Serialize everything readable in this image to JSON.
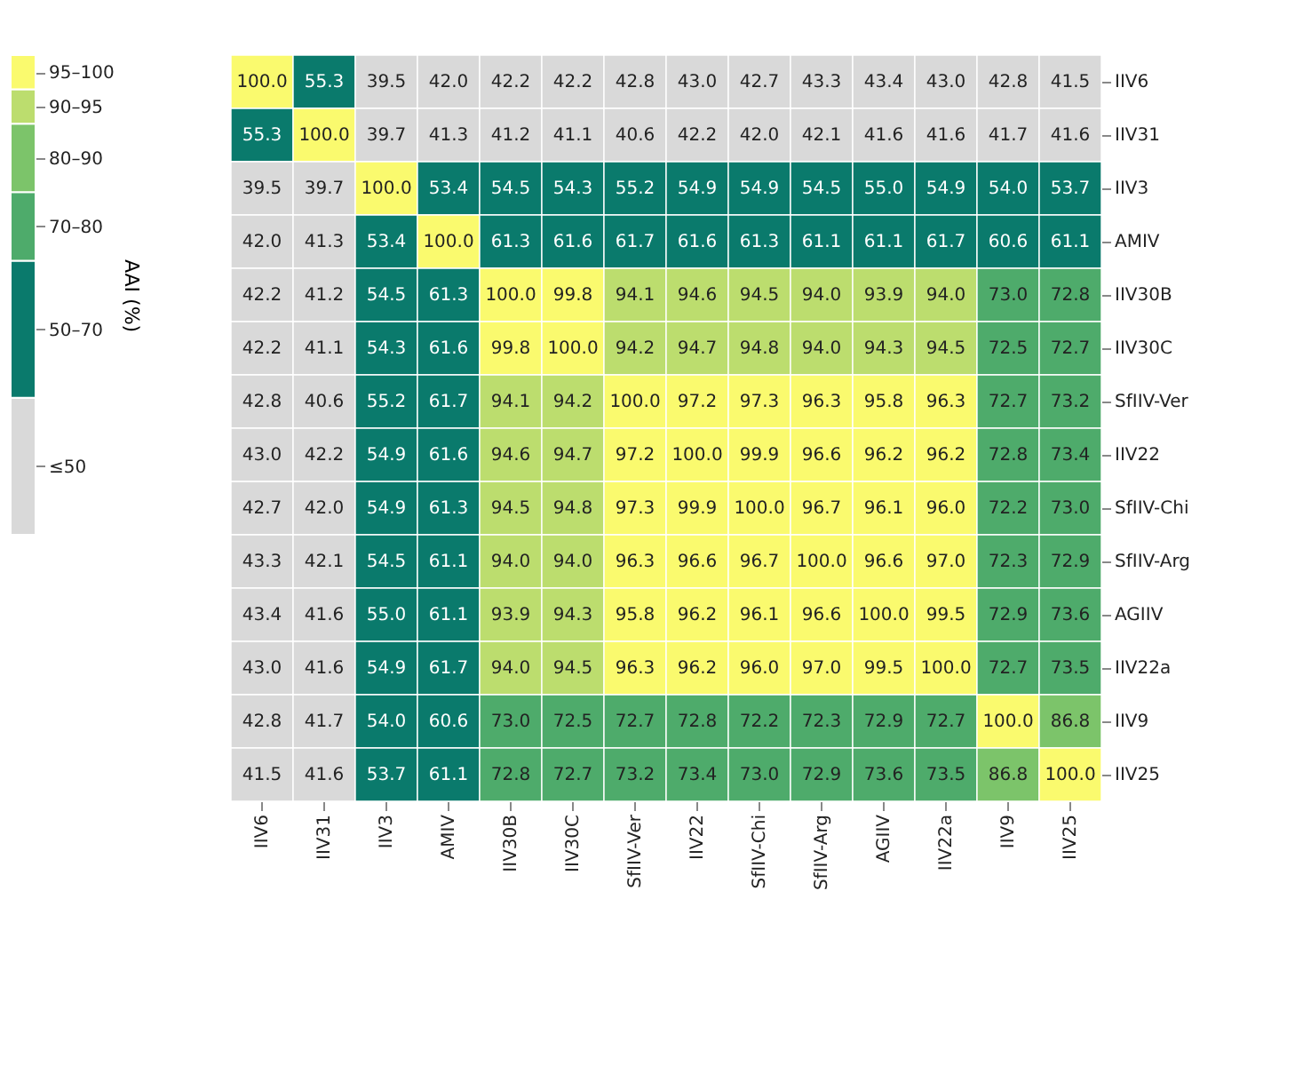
{
  "chart_data": {
    "type": "heatmap",
    "clabel": "AAI (%)",
    "data_labels": true,
    "categories": [
      "IIV6",
      "IIV31",
      "IIV3",
      "AMIV",
      "IIV30B",
      "IIV30C",
      "SfIIV-Ver",
      "IIV22",
      "SfIIV-Chi",
      "SfIIV-Arg",
      "AGIIV",
      "IIV22a",
      "IIV9",
      "IIV25"
    ],
    "y_categories": [
      "IIV6",
      "IIV31",
      "IIV3",
      "AMIV",
      "IIV30B",
      "IIV30C",
      "SfIIV-Ver",
      "IIV22",
      "SfIIV-Chi",
      "SfIIV-Arg",
      "AGIIV",
      "IIV22a",
      "IIV9",
      "IIV25"
    ],
    "cells": [
      [
        100.0,
        55.3,
        39.5,
        42.0,
        42.2,
        42.2,
        42.8,
        43.0,
        42.7,
        43.3,
        43.4,
        43.0,
        42.8,
        41.5
      ],
      [
        55.3,
        100.0,
        39.7,
        41.3,
        41.2,
        41.1,
        40.6,
        42.2,
        42.0,
        42.1,
        41.6,
        41.6,
        41.7,
        41.6
      ],
      [
        39.5,
        39.7,
        100.0,
        53.4,
        54.5,
        54.3,
        55.2,
        54.9,
        54.9,
        54.5,
        55.0,
        54.9,
        54.0,
        53.7
      ],
      [
        42.0,
        41.3,
        53.4,
        100.0,
        61.3,
        61.6,
        61.7,
        61.6,
        61.3,
        61.1,
        61.1,
        61.7,
        60.6,
        61.1
      ],
      [
        42.2,
        41.2,
        54.5,
        61.3,
        100.0,
        99.8,
        94.1,
        94.6,
        94.5,
        94.0,
        93.9,
        94.0,
        73.0,
        72.8
      ],
      [
        42.2,
        41.1,
        54.3,
        61.6,
        99.8,
        100.0,
        94.2,
        94.7,
        94.8,
        94.0,
        94.3,
        94.5,
        72.5,
        72.7
      ],
      [
        42.8,
        40.6,
        55.2,
        61.7,
        94.1,
        94.2,
        100.0,
        97.2,
        97.3,
        96.3,
        95.8,
        96.3,
        72.7,
        73.2
      ],
      [
        43.0,
        42.2,
        54.9,
        61.6,
        94.6,
        94.7,
        97.2,
        100.0,
        99.9,
        96.6,
        96.2,
        96.2,
        72.8,
        73.4
      ],
      [
        42.7,
        42.0,
        54.9,
        61.3,
        94.5,
        94.8,
        97.3,
        99.9,
        100.0,
        96.7,
        96.1,
        96.0,
        72.2,
        73.0
      ],
      [
        43.3,
        42.1,
        54.5,
        61.1,
        94.0,
        94.0,
        96.3,
        96.6,
        96.7,
        100.0,
        96.6,
        97.0,
        72.3,
        72.9
      ],
      [
        43.4,
        41.6,
        55.0,
        61.1,
        93.9,
        94.3,
        95.8,
        96.2,
        96.1,
        96.6,
        100.0,
        99.5,
        72.9,
        73.6
      ],
      [
        43.0,
        41.6,
        54.9,
        61.7,
        94.0,
        94.5,
        96.3,
        96.2,
        96.0,
        97.0,
        99.5,
        100.0,
        72.7,
        73.5
      ],
      [
        42.8,
        41.7,
        54.0,
        60.6,
        73.0,
        72.5,
        72.7,
        72.8,
        72.2,
        72.3,
        72.9,
        72.7,
        100.0,
        86.8
      ],
      [
        41.5,
        41.6,
        53.7,
        61.1,
        72.8,
        72.7,
        73.2,
        73.4,
        73.0,
        72.9,
        73.6,
        73.5,
        86.8,
        100.0
      ]
    ],
    "cell_labels": [
      [
        "100.0",
        "55.3",
        "39.5",
        "42.0",
        "42.2",
        "42.2",
        "42.8",
        "43.0",
        "42.7",
        "43.3",
        "43.4",
        "43.0",
        "42.8",
        "41.5"
      ],
      [
        "55.3",
        "100.0",
        "39.7",
        "41.3",
        "41.2",
        "41.1",
        "40.6",
        "42.2",
        "42.0",
        "42.1",
        "41.6",
        "41.6",
        "41.7",
        "41.6"
      ],
      [
        "39.5",
        "39.7",
        "100.0",
        "53.4",
        "54.5",
        "54.3",
        "55.2",
        "54.9",
        "54.9",
        "54.5",
        "55.0",
        "54.9",
        "54.0",
        "53.7"
      ],
      [
        "42.0",
        "41.3",
        "53.4",
        "100.0",
        "61.3",
        "61.6",
        "61.7",
        "61.6",
        "61.3",
        "61.1",
        "61.1",
        "61.7",
        "60.6",
        "61.1"
      ],
      [
        "42.2",
        "41.2",
        "54.5",
        "61.3",
        "100.0",
        "99.8",
        "94.1",
        "94.6",
        "94.5",
        "94.0",
        "93.9",
        "94.0",
        "73.0",
        "72.8"
      ],
      [
        "42.2",
        "41.1",
        "54.3",
        "61.6",
        "99.8",
        "100.0",
        "94.2",
        "94.7",
        "94.8",
        "94.0",
        "94.3",
        "94.5",
        "72.5",
        "72.7"
      ],
      [
        "42.8",
        "40.6",
        "55.2",
        "61.7",
        "94.1",
        "94.2",
        "100.0",
        "97.2",
        "97.3",
        "96.3",
        "95.8",
        "96.3",
        "72.7",
        "73.2"
      ],
      [
        "43.0",
        "42.2",
        "54.9",
        "61.6",
        "94.6",
        "94.7",
        "97.2",
        "100.0",
        "99.9",
        "96.6",
        "96.2",
        "96.2",
        "72.8",
        "73.4"
      ],
      [
        "42.7",
        "42.0",
        "54.9",
        "61.3",
        "94.5",
        "94.8",
        "97.3",
        "99.9",
        "100.0",
        "96.7",
        "96.1",
        "96.0",
        "72.2",
        "73.0"
      ],
      [
        "43.3",
        "42.1",
        "54.5",
        "61.1",
        "94.0",
        "94.0",
        "96.3",
        "96.6",
        "96.7",
        "100.0",
        "96.6",
        "97.0",
        "72.3",
        "72.9"
      ],
      [
        "43.4",
        "41.6",
        "55.0",
        "61.1",
        "93.9",
        "94.3",
        "95.8",
        "96.2",
        "96.1",
        "96.6",
        "100.0",
        "99.5",
        "72.9",
        "73.6"
      ],
      [
        "43.0",
        "41.6",
        "54.9",
        "61.7",
        "94.0",
        "94.5",
        "96.3",
        "96.2",
        "96.0",
        "97.0",
        "99.5",
        "100.0",
        "72.7",
        "73.5"
      ],
      [
        "42.8",
        "41.7",
        "54.0",
        "60.6",
        "73.0",
        "72.5",
        "72.7",
        "72.8",
        "72.2",
        "72.3",
        "72.9",
        "72.7",
        "100.0",
        "86.8"
      ],
      [
        "41.5",
        "41.6",
        "53.7",
        "61.1",
        "72.8",
        "72.7",
        "73.2",
        "73.4",
        "73.0",
        "72.9",
        "73.6",
        "73.5",
        "86.8",
        "100.0"
      ]
    ],
    "colors": [
      "#d9d9d9",
      "#0a7a6c",
      "#4eab6b",
      "#7cc46a",
      "#bcdd6e",
      "#fafa6e"
    ],
    "clim": [
      30,
      100
    ],
    "cticks": [
      {
        "value": 40,
        "label": "≤50"
      },
      {
        "value": 60,
        "label": "50–70"
      },
      {
        "value": 75,
        "label": "70–80"
      },
      {
        "value": 85,
        "label": "80–90"
      },
      {
        "value": 92.5,
        "label": "90–95"
      },
      {
        "value": 97.5,
        "label": "95–100"
      }
    ]
  }
}
